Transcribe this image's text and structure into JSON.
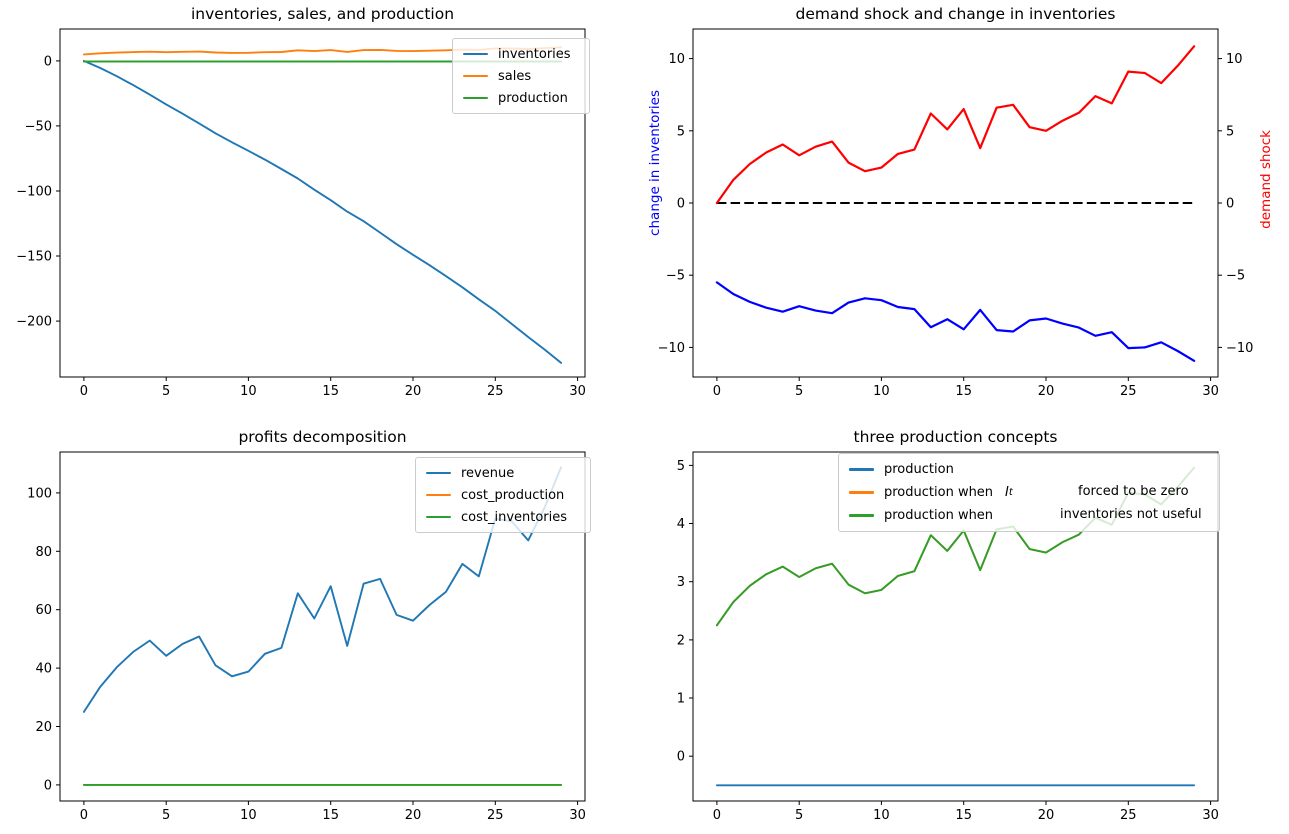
{
  "figure": {
    "background": "#ffffff",
    "rows": 2,
    "cols": 2
  },
  "colors": {
    "tab_blue": "#1f77b4",
    "tab_orange": "#ff7f0e",
    "tab_green": "#2ca02c",
    "pure_blue": "#0000ff",
    "pure_red": "#ff0000",
    "black": "#000000"
  },
  "chart_data": [
    {
      "type": "line",
      "title": "inventories, sales, and production",
      "x": [
        0,
        1,
        2,
        3,
        4,
        5,
        6,
        7,
        8,
        9,
        10,
        11,
        12,
        13,
        14,
        15,
        16,
        17,
        18,
        19,
        20,
        21,
        22,
        23,
        24,
        25,
        26,
        27,
        28,
        29
      ],
      "xticks": [
        0,
        5,
        10,
        15,
        20,
        25,
        30
      ],
      "yticks": [
        0,
        -50,
        -100,
        -150,
        -200
      ],
      "xlim": [
        -1.45,
        30.45
      ],
      "ylim": [
        -243,
        24.5
      ],
      "grid": false,
      "legend_position": "upper right",
      "series": [
        {
          "name": "inventories",
          "color": "#1f77b4",
          "values": [
            0,
            -5.5,
            -11.8,
            -18.65,
            -25.9,
            -33.43,
            -40.58,
            -48.03,
            -55.66,
            -62.56,
            -69.16,
            -75.89,
            -83.09,
            -90.44,
            -99.04,
            -107.09,
            -115.84,
            -123.24,
            -132.04,
            -140.94,
            -149.07,
            -157.07,
            -165.42,
            -174.05,
            -183.25,
            -192.2,
            -202.25,
            -212.25,
            -221.9,
            -232.15
          ]
        },
        {
          "name": "sales",
          "color": "#ff7f0e",
          "values": [
            5.0,
            5.8,
            6.35,
            6.75,
            7.03,
            6.65,
            6.95,
            7.13,
            6.4,
            6.1,
            6.23,
            6.7,
            6.85,
            8.1,
            7.55,
            8.25,
            6.9,
            8.3,
            8.4,
            7.63,
            7.5,
            7.85,
            8.13,
            8.7,
            8.45,
            9.55,
            9.5,
            9.15,
            9.75,
            10.43
          ]
        },
        {
          "name": "production",
          "color": "#2ca02c",
          "values": [
            -0.5,
            -0.5,
            -0.5,
            -0.5,
            -0.5,
            -0.5,
            -0.5,
            -0.5,
            -0.5,
            -0.5,
            -0.5,
            -0.5,
            -0.5,
            -0.5,
            -0.5,
            -0.5,
            -0.5,
            -0.5,
            -0.5,
            -0.5,
            -0.5,
            -0.5,
            -0.5,
            -0.5,
            -0.5,
            -0.5,
            -0.5,
            -0.5,
            -0.5,
            -0.5
          ]
        }
      ]
    },
    {
      "type": "line",
      "title": "demand shock and change in inventories",
      "x": [
        0,
        1,
        2,
        3,
        4,
        5,
        6,
        7,
        8,
        9,
        10,
        11,
        12,
        13,
        14,
        15,
        16,
        17,
        18,
        19,
        20,
        21,
        22,
        23,
        24,
        25,
        26,
        27,
        28,
        29
      ],
      "xticks": [
        0,
        5,
        10,
        15,
        20,
        25,
        30
      ],
      "yticks": [
        10,
        5,
        0,
        -5,
        -10
      ],
      "yticks_right": [
        10,
        5,
        0,
        -5,
        -10
      ],
      "xlim": [
        -1.45,
        30.45
      ],
      "ylim": [
        -12.05,
        12.05
      ],
      "grid": false,
      "ylabel_left": {
        "text": "change in inventories",
        "color": "#0000ff"
      },
      "ylabel_right": {
        "text": "demand shock",
        "color": "#ff0000"
      },
      "zero_line": {
        "value": 0,
        "style": "dashed",
        "color": "#000000"
      },
      "series": [
        {
          "name": "change in inventories",
          "color": "#0000ff",
          "values": [
            -5.5,
            -6.3,
            -6.85,
            -7.25,
            -7.53,
            -7.15,
            -7.45,
            -7.63,
            -6.9,
            -6.6,
            -6.73,
            -7.2,
            -7.35,
            -8.6,
            -8.05,
            -8.75,
            -7.4,
            -8.8,
            -8.9,
            -8.13,
            -8.0,
            -8.35,
            -8.63,
            -9.2,
            -8.95,
            -10.05,
            -10.0,
            -9.65,
            -10.25,
            -10.93
          ]
        },
        {
          "name": "demand shock",
          "color": "#ff0000",
          "axis": "right",
          "values": [
            0.0,
            1.6,
            2.7,
            3.5,
            4.05,
            3.3,
            3.9,
            4.25,
            2.8,
            2.2,
            2.45,
            3.4,
            3.7,
            6.2,
            5.1,
            6.5,
            3.8,
            6.6,
            6.8,
            5.25,
            5.0,
            5.7,
            6.25,
            7.4,
            6.9,
            9.1,
            9.0,
            8.3,
            9.5,
            10.85
          ]
        }
      ]
    },
    {
      "type": "line",
      "title": "profits decomposition",
      "x": [
        0,
        1,
        2,
        3,
        4,
        5,
        6,
        7,
        8,
        9,
        10,
        11,
        12,
        13,
        14,
        15,
        16,
        17,
        18,
        19,
        20,
        21,
        22,
        23,
        24,
        25,
        26,
        27,
        28,
        29
      ],
      "xticks": [
        0,
        5,
        10,
        15,
        20,
        25,
        30
      ],
      "yticks": [
        0,
        20,
        40,
        60,
        80,
        100
      ],
      "xlim": [
        -1.45,
        30.45
      ],
      "ylim": [
        -5.5,
        114
      ],
      "grid": false,
      "legend_position": "upper right",
      "series": [
        {
          "name": "revenue",
          "color": "#1f77b4",
          "values": [
            25.0,
            33.64,
            40.32,
            45.56,
            49.42,
            44.22,
            48.3,
            50.84,
            40.96,
            37.21,
            38.81,
            44.89,
            46.92,
            65.61,
            57.0,
            68.06,
            47.61,
            68.89,
            70.56,
            58.22,
            56.25,
            61.62,
            66.1,
            75.69,
            71.4,
            91.2,
            90.25,
            83.72,
            95.06,
            108.78
          ]
        },
        {
          "name": "cost_production",
          "color": "#ff7f0e",
          "values": [
            0,
            0,
            0,
            0,
            0,
            0,
            0,
            0,
            0,
            0,
            0,
            0,
            0,
            0,
            0,
            0,
            0,
            0,
            0,
            0,
            0,
            0,
            0,
            0,
            0,
            0,
            0,
            0,
            0,
            0
          ]
        },
        {
          "name": "cost_inventories",
          "color": "#2ca02c",
          "values": [
            0,
            0,
            0,
            0,
            0,
            0,
            0,
            0,
            0,
            0,
            0,
            0,
            0,
            0,
            0,
            0,
            0,
            0,
            0,
            0,
            0,
            0,
            0,
            0,
            0,
            0,
            0,
            0,
            0,
            0
          ]
        }
      ]
    },
    {
      "type": "line",
      "title": "three production concepts",
      "x": [
        0,
        1,
        2,
        3,
        4,
        5,
        6,
        7,
        8,
        9,
        10,
        11,
        12,
        13,
        14,
        15,
        16,
        17,
        18,
        19,
        20,
        21,
        22,
        23,
        24,
        25,
        26,
        27,
        28,
        29
      ],
      "xticks": [
        0,
        5,
        10,
        15,
        20,
        25,
        30
      ],
      "yticks": [
        0,
        1,
        2,
        3,
        4,
        5
      ],
      "xlim": [
        -1.45,
        30.45
      ],
      "ylim": [
        -0.77,
        5.23
      ],
      "grid": false,
      "legend_position": "upper right",
      "series": [
        {
          "name": "production",
          "color": "#1f77b4",
          "values": [
            -0.5,
            -0.5,
            -0.5,
            -0.5,
            -0.5,
            -0.5,
            -0.5,
            -0.5,
            -0.5,
            -0.5,
            -0.5,
            -0.5,
            -0.5,
            -0.5,
            -0.5,
            -0.5,
            -0.5,
            -0.5,
            -0.5,
            -0.5,
            -0.5,
            -0.5,
            -0.5,
            -0.5,
            -0.5,
            -0.5,
            -0.5,
            -0.5,
            -0.5,
            -0.5
          ]
        },
        {
          "name": "production when $I_t$ forced to be zero",
          "color": "#ff7f0e",
          "values": [
            2.25,
            2.65,
            2.93,
            3.13,
            3.26,
            3.08,
            3.23,
            3.31,
            2.95,
            2.8,
            2.86,
            3.1,
            3.18,
            3.8,
            3.53,
            3.88,
            3.2,
            3.9,
            3.95,
            3.56,
            3.5,
            3.68,
            3.81,
            4.1,
            3.98,
            4.53,
            4.5,
            4.33,
            4.63,
            4.96
          ]
        },
        {
          "name": "production when inventories not useful",
          "color": "#2ca02c",
          "values": [
            2.25,
            2.65,
            2.93,
            3.13,
            3.26,
            3.08,
            3.23,
            3.31,
            2.95,
            2.8,
            2.86,
            3.1,
            3.18,
            3.8,
            3.53,
            3.88,
            3.2,
            3.9,
            3.95,
            3.56,
            3.5,
            3.68,
            3.81,
            4.1,
            3.98,
            4.53,
            4.5,
            4.33,
            4.63,
            4.96
          ]
        }
      ],
      "legend_rows": [
        {
          "label": "production"
        },
        {
          "pre": "production when",
          "math_var": "I",
          "math_sub": "t",
          "post": "forced to be zero"
        },
        {
          "pre": "production when",
          "post": "inventories not useful"
        }
      ]
    }
  ]
}
